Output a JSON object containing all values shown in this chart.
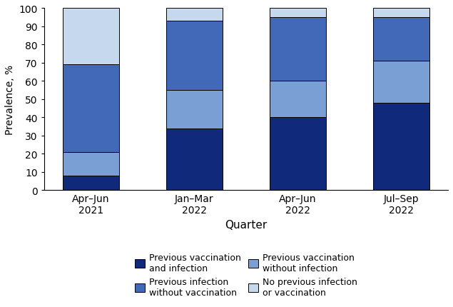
{
  "categories": [
    "Apr–Jun\n2021",
    "Jan–Mar\n2022",
    "Apr–Jun\n2022",
    "Jul–Sep\n2022"
  ],
  "segments": {
    "prev_vax_infection": [
      8,
      34,
      40,
      48
    ],
    "prev_vax_no_infection": [
      13,
      21,
      20,
      23
    ],
    "prev_infection_no_vax": [
      48,
      38,
      35,
      24
    ],
    "no_prev": [
      31,
      7,
      5,
      5
    ]
  },
  "colors": {
    "prev_vax_infection": "#10297a",
    "prev_vax_no_infection": "#7a9fd4",
    "prev_infection_no_vax": "#4169b8",
    "no_prev": "#c5d8ee"
  },
  "labels": {
    "prev_vax_infection": "Previous vaccination\nand infection",
    "prev_infection_no_vax": "Previous infection\nwithout vaccination",
    "prev_vax_no_infection": "Previous vaccination\nwithout infection",
    "no_prev": "No previous infection\nor vaccination"
  },
  "stack_order": [
    "prev_vax_infection",
    "prev_vax_no_infection",
    "prev_infection_no_vax",
    "no_prev"
  ],
  "legend_order": [
    "prev_vax_infection",
    "prev_infection_no_vax",
    "prev_vax_no_infection",
    "no_prev"
  ],
  "ylabel": "Prevalence, %",
  "xlabel": "Quarter",
  "ylim": [
    0,
    100
  ],
  "yticks": [
    0,
    10,
    20,
    30,
    40,
    50,
    60,
    70,
    80,
    90,
    100
  ],
  "bar_width": 0.55,
  "edgecolor": "#000000",
  "background_color": "#ffffff",
  "xlabel_fontsize": 11,
  "ylabel_fontsize": 10,
  "tick_fontsize": 10,
  "legend_fontsize": 9
}
